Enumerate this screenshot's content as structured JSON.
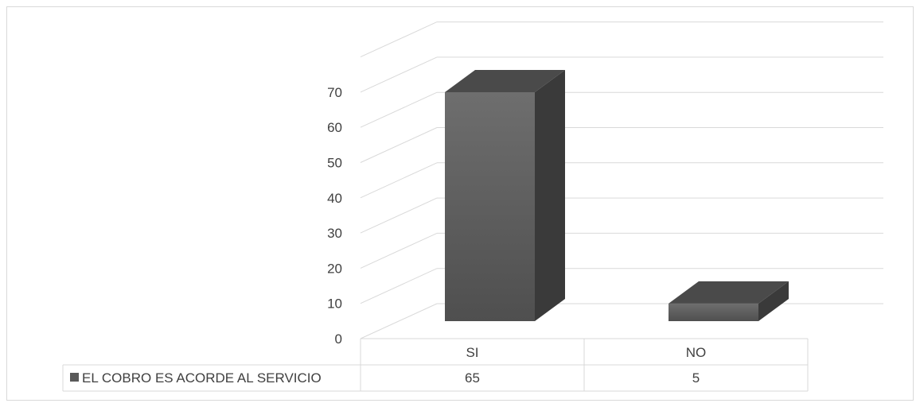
{
  "chart_data": {
    "type": "bar",
    "style": "3d-column",
    "categories": [
      "SI",
      "NO"
    ],
    "series": [
      {
        "name": "EL COBRO ES ACORDE AL SERVICIO",
        "values": [
          65,
          5
        ],
        "color": "#595959"
      }
    ],
    "ylim": [
      0,
      70
    ],
    "ytick_step": 10,
    "grid": true,
    "legend": "data-table",
    "data_table": true,
    "colors": {
      "gridline": "#d9d9d9",
      "text": "#404040",
      "bar_front": "#606060",
      "bar_side": "#3a3a3a",
      "bar_top": "#4a4a4a"
    }
  }
}
